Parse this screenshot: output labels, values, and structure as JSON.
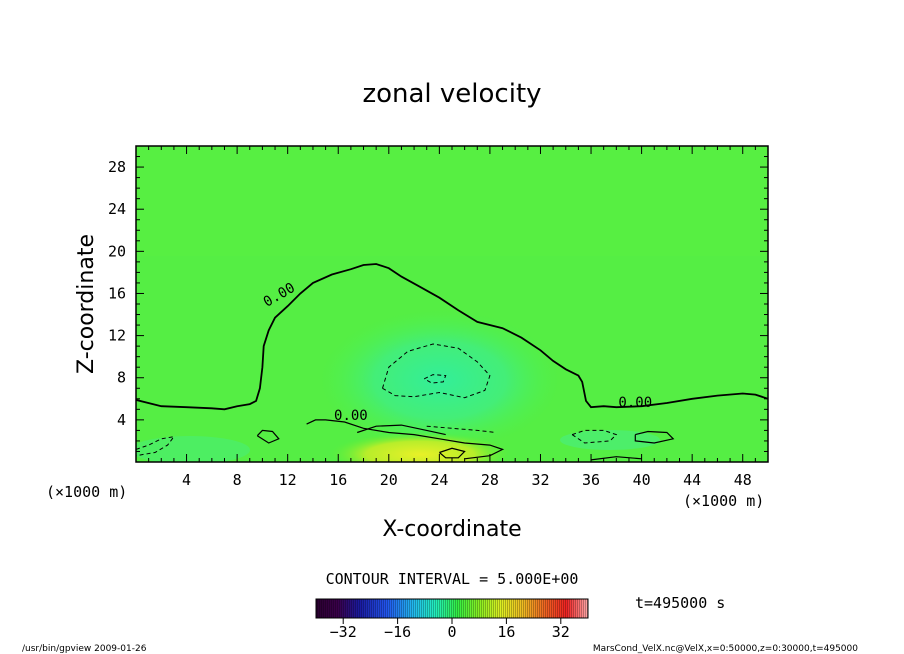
{
  "chart_data": {
    "type": "heatmap",
    "title": "zonal velocity",
    "xlabel": "X-coordinate",
    "ylabel": "Z-coordinate",
    "x_unit_label": "(×1000 m)",
    "y_unit_label": "(×1000 m)",
    "xlim": [
      0,
      50
    ],
    "ylim": [
      0,
      30
    ],
    "x_ticks": [
      4,
      8,
      12,
      16,
      20,
      24,
      28,
      32,
      36,
      40,
      44,
      48
    ],
    "y_ticks": [
      4,
      8,
      12,
      16,
      20,
      24,
      28
    ],
    "contour_interval_text": "CONTOUR INTERVAL = 5.000E+00",
    "time_text": "t=495000 s",
    "zero_contour_labels": [
      {
        "text": "0.00",
        "x": 11.5,
        "y": 15.5
      },
      {
        "text": "0.00",
        "x": 17.0,
        "y": 4.0
      },
      {
        "text": "0.00",
        "x": 39.5,
        "y": 5.2
      }
    ],
    "zero_contour": [
      [
        0,
        5.9
      ],
      [
        2,
        5.3
      ],
      [
        4,
        5.2
      ],
      [
        6,
        5.1
      ],
      [
        7,
        5.0
      ],
      [
        8,
        5.3
      ],
      [
        9,
        5.5
      ],
      [
        9.5,
        5.8
      ],
      [
        9.8,
        7
      ],
      [
        10,
        9
      ],
      [
        10.1,
        11
      ],
      [
        10.5,
        12.5
      ],
      [
        11,
        13.7
      ],
      [
        12,
        14.8
      ],
      [
        13,
        16
      ],
      [
        14,
        17
      ],
      [
        15.5,
        17.8
      ],
      [
        17,
        18.3
      ],
      [
        18,
        18.7
      ],
      [
        19,
        18.8
      ],
      [
        20,
        18.4
      ],
      [
        21,
        17.6
      ],
      [
        22.5,
        16.6
      ],
      [
        24,
        15.6
      ],
      [
        25.5,
        14.4
      ],
      [
        27,
        13.3
      ],
      [
        29,
        12.7
      ],
      [
        30.5,
        11.8
      ],
      [
        32,
        10.6
      ],
      [
        33,
        9.6
      ],
      [
        34,
        8.8
      ],
      [
        35,
        8.2
      ],
      [
        35.3,
        7.6
      ],
      [
        35.6,
        5.8
      ],
      [
        36,
        5.2
      ],
      [
        37,
        5.3
      ],
      [
        38,
        5.2
      ],
      [
        40,
        5.3
      ],
      [
        42,
        5.6
      ],
      [
        44,
        6.0
      ],
      [
        46,
        6.3
      ],
      [
        48,
        6.5
      ],
      [
        49,
        6.4
      ],
      [
        50,
        6.0
      ]
    ],
    "colorbar": {
      "ticks": [
        -32,
        -16,
        0,
        16,
        32
      ],
      "range": [
        -40,
        40
      ]
    }
  },
  "footer": {
    "left": "/usr/bin/gpview  2009-01-26",
    "right": "MarsCond_VelX.nc@VelX,x=0:50000,z=0:30000,t=495000"
  }
}
